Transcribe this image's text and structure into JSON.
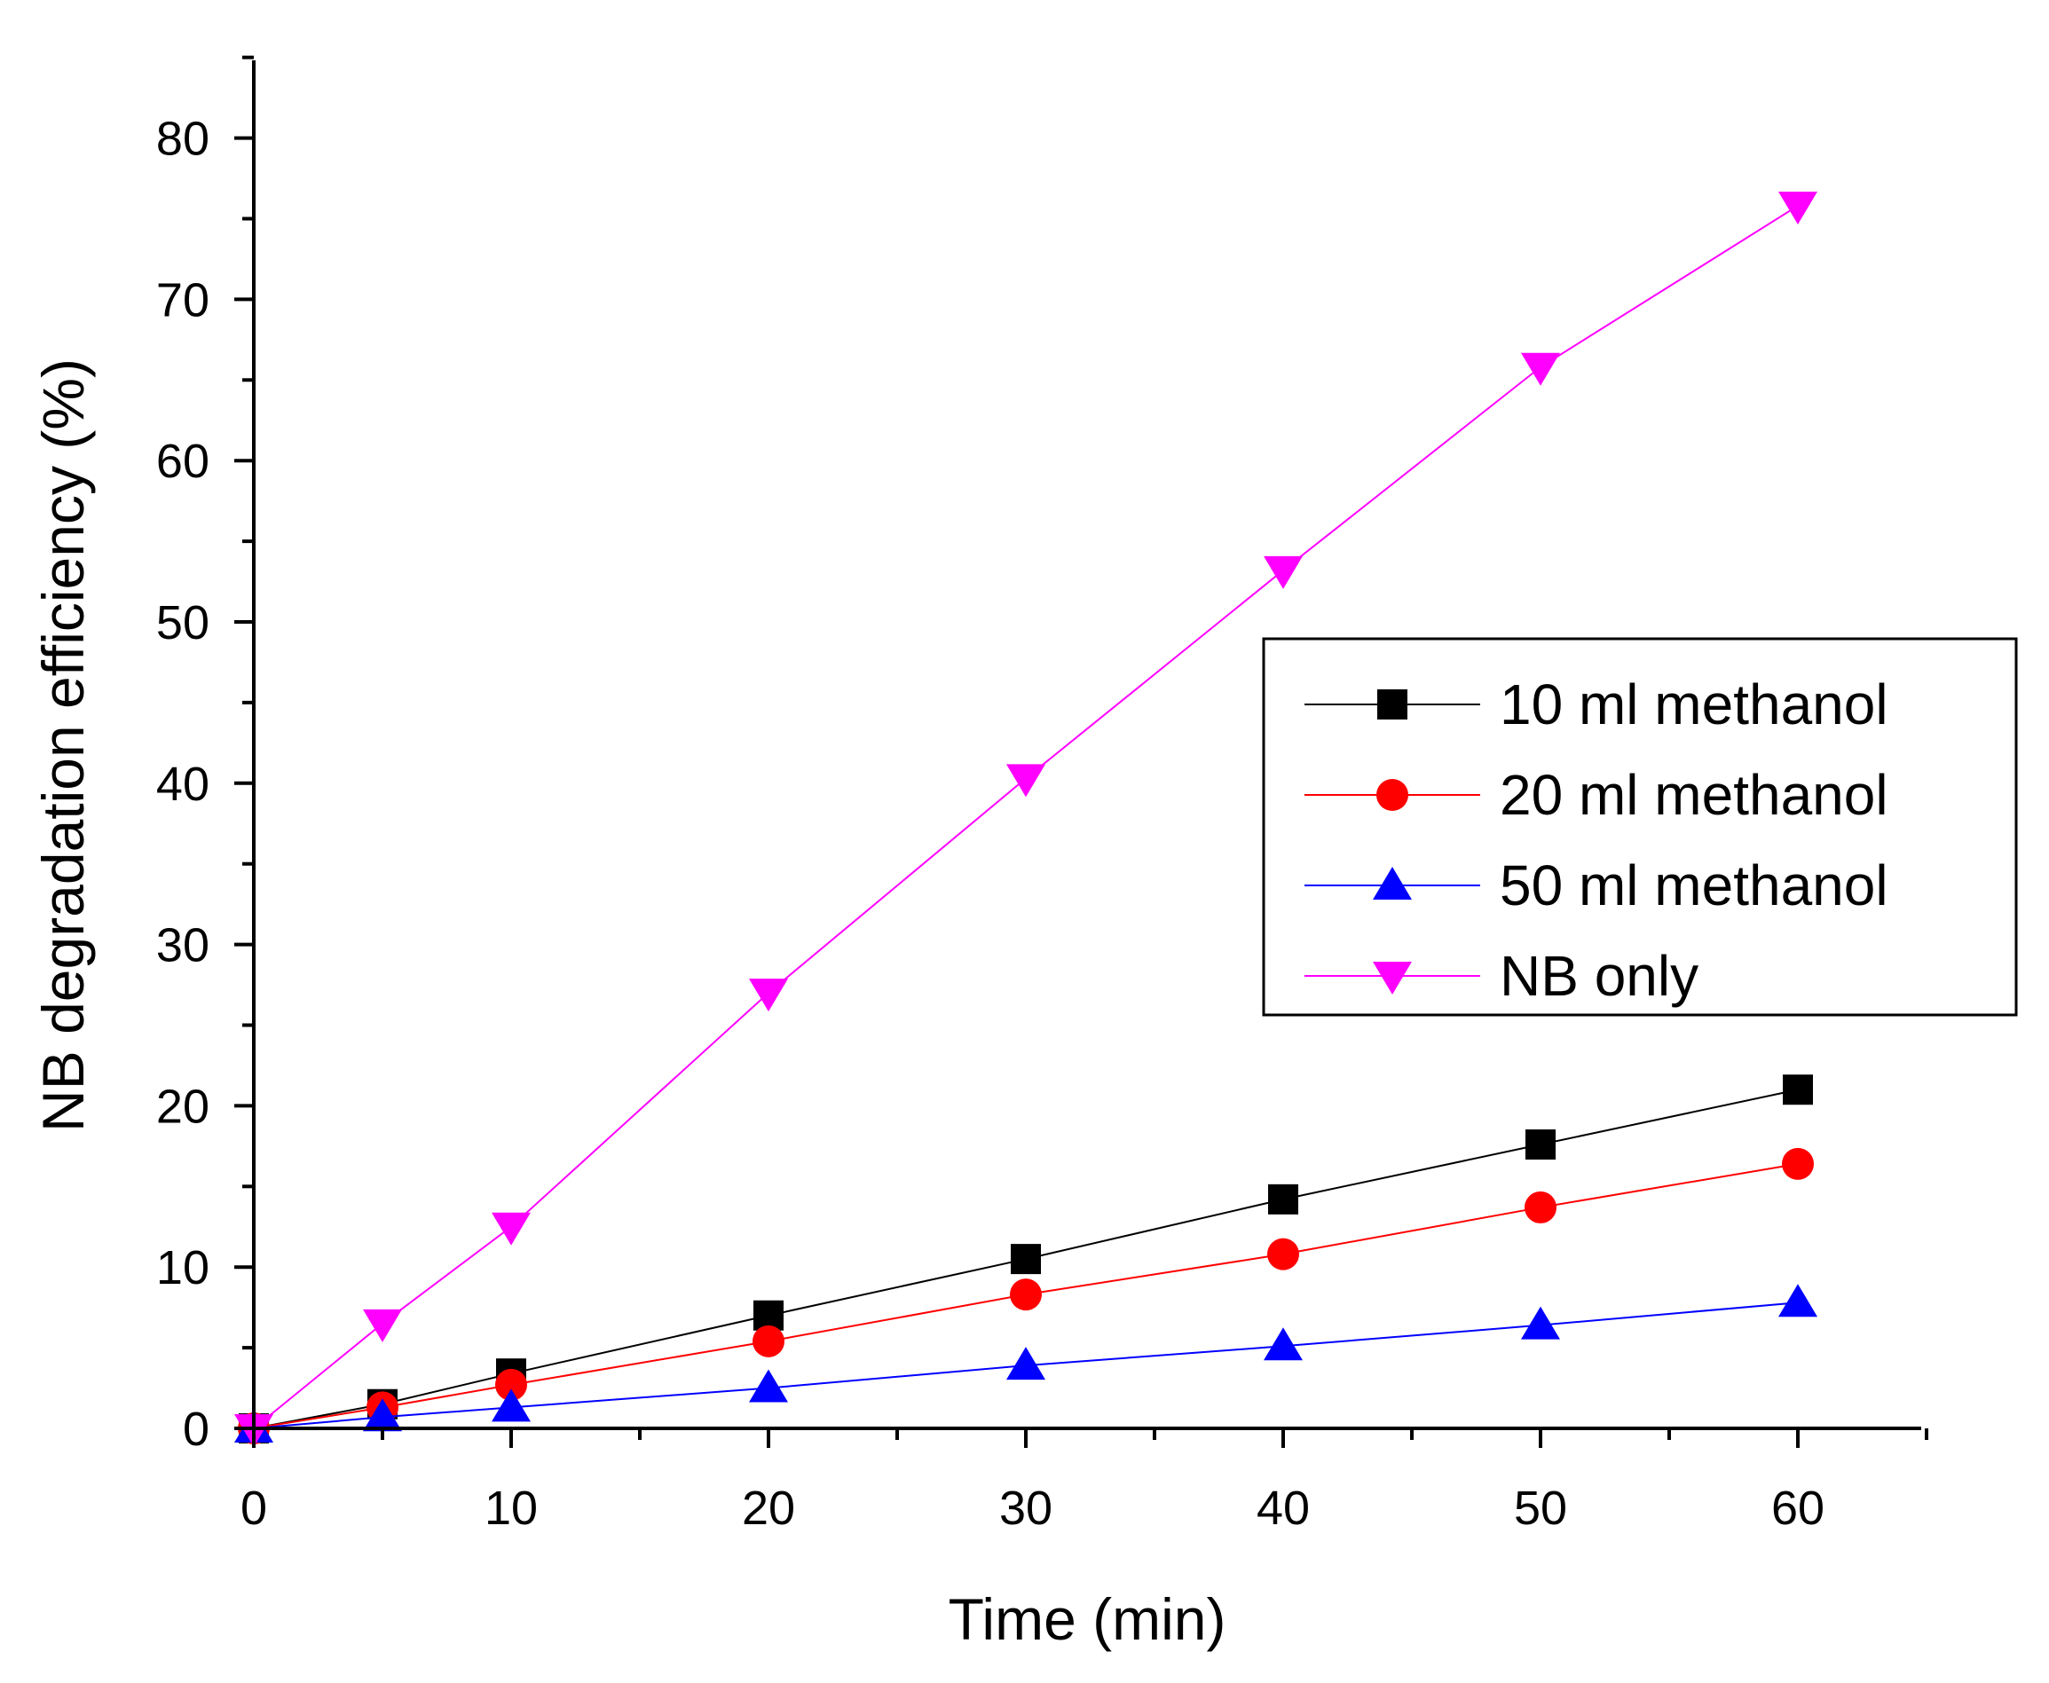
{
  "chart_data": {
    "type": "line",
    "title": "",
    "xlabel": "Time (min)",
    "ylabel": "NB degradation efficiency (%)",
    "xlim": [
      0,
      65
    ],
    "ylim": [
      0,
      85
    ],
    "xticks": [
      0,
      10,
      20,
      30,
      40,
      50,
      60
    ],
    "yticks": [
      0,
      10,
      20,
      30,
      40,
      50,
      60,
      70,
      80
    ],
    "grid": false,
    "legend_position": "right-middle",
    "x": [
      0,
      5,
      10,
      20,
      30,
      40,
      50,
      60
    ],
    "series": [
      {
        "name": "10 ml methanol",
        "color": "#000000",
        "marker": "square",
        "values": [
          0,
          1.5,
          3.4,
          7.0,
          10.5,
          14.2,
          17.6,
          21.0
        ]
      },
      {
        "name": "20 ml methanol",
        "color": "#ff0000",
        "marker": "circle",
        "values": [
          0,
          1.3,
          2.7,
          5.4,
          8.3,
          10.8,
          13.7,
          16.4
        ]
      },
      {
        "name": "50 ml methanol",
        "color": "#0000ff",
        "marker": "triangle-up",
        "values": [
          0,
          0.7,
          1.3,
          2.5,
          3.9,
          5.1,
          6.4,
          7.8
        ]
      },
      {
        "name": "NB only",
        "color": "#ff00ff",
        "marker": "triangle-down",
        "values": [
          0,
          6.5,
          12.5,
          27.0,
          40.3,
          53.2,
          65.8,
          75.8
        ]
      }
    ]
  }
}
